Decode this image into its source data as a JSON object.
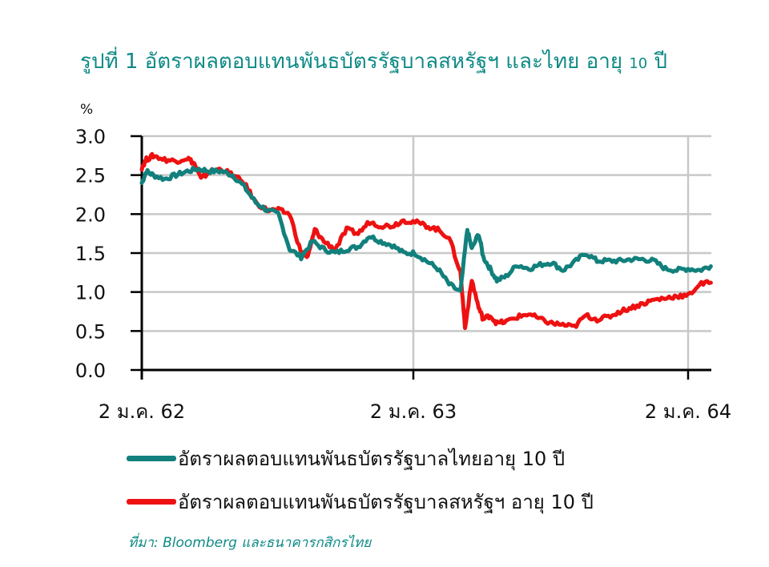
{
  "title": {
    "prefix": "รูปที่ 1 อัตราผลตอบแทนพันธบัตรรัฐบาลสหรัฐฯ และไทย อายุ ",
    "num": "10",
    "suffix": " ปี"
  },
  "colors": {
    "thai": "#12807c",
    "us": "#ee1111",
    "title": "#0e8a86",
    "grid": "#c8c8c8",
    "axis": "#000000"
  },
  "legend": [
    {
      "label": "อัตราผลตอบแทนพันธบัตรรัฐบาลไทยอายุ 10 ปี",
      "color": "#12807c"
    },
    {
      "label": "อัตราผลตอบแทนพันธบัตรรัฐบาลสหรัฐฯ อายุ 10 ปี",
      "color": "#ee1111"
    }
  ],
  "source": "ที่มา: Bloomberg  และธนาคารกสิกรไทย",
  "chart_data": {
    "type": "line",
    "title": "รูปที่ 1 อัตราผลตอบแทนพันธบัตรรัฐบาลสหรัฐฯ และไทย อายุ 10 ปี",
    "xlabel": "",
    "ylabel": "%",
    "ylim": [
      0,
      3.0
    ],
    "yticks": [
      "0.0",
      "0.5",
      "1.0",
      "1.5",
      "2.0",
      "2.5",
      "3.0"
    ],
    "xticks": [
      "2 ม.ค. 62",
      "2 ม.ค. 63",
      "2 ม.ค. 64"
    ],
    "x_unit": "months since 2 ม.ค. 62",
    "xlim": [
      0,
      25.0
    ],
    "grid": true,
    "legend_position": "bottom",
    "series": [
      {
        "name": "อัตราผลตอบแทนพันธบัตรรัฐบาลไทยอายุ 10 ปี",
        "color": "#12807c",
        "x": [
          0,
          0.2,
          0.5,
          1.0,
          1.5,
          2.0,
          2.5,
          3.0,
          3.5,
          4.0,
          4.5,
          5.0,
          5.5,
          6.0,
          6.5,
          7.0,
          7.5,
          8.0,
          8.5,
          9.0,
          9.5,
          10.0,
          10.5,
          11.0,
          11.5,
          12.0,
          12.5,
          13.0,
          13.5,
          14.0,
          14.3,
          14.5,
          14.8,
          15.0,
          15.3,
          15.6,
          16.0,
          16.5,
          17.0,
          17.5,
          18.0,
          18.5,
          19.0,
          19.5,
          20.0,
          20.5,
          21.0,
          21.5,
          22.0,
          22.5,
          23.0,
          23.5,
          24.0,
          24.5,
          25.0
        ],
        "y": [
          2.4,
          2.55,
          2.5,
          2.45,
          2.5,
          2.55,
          2.58,
          2.55,
          2.55,
          2.5,
          2.35,
          2.15,
          2.05,
          2.0,
          1.55,
          1.45,
          1.65,
          1.55,
          1.5,
          1.55,
          1.58,
          1.72,
          1.65,
          1.6,
          1.5,
          1.5,
          1.4,
          1.3,
          1.1,
          1.0,
          1.8,
          1.55,
          1.75,
          1.45,
          1.3,
          1.15,
          1.2,
          1.35,
          1.3,
          1.35,
          1.38,
          1.28,
          1.38,
          1.5,
          1.4,
          1.4,
          1.4,
          1.42,
          1.42,
          1.4,
          1.3,
          1.28,
          1.3,
          1.28,
          1.33
        ]
      },
      {
        "name": "อัตราผลตอบแทนพันธบัตรรัฐบาลสหรัฐฯ อายุ 10 ปี",
        "color": "#ee1111",
        "x": [
          0,
          0.2,
          0.5,
          1.0,
          1.5,
          2.0,
          2.3,
          2.6,
          3.0,
          3.5,
          4.0,
          4.5,
          5.0,
          5.5,
          6.0,
          6.5,
          7.0,
          7.3,
          7.6,
          8.0,
          8.5,
          9.0,
          9.5,
          10.0,
          10.5,
          11.0,
          11.5,
          12.0,
          12.5,
          13.0,
          13.5,
          14.0,
          14.2,
          14.5,
          14.8,
          15.0,
          15.3,
          15.6,
          16.0,
          16.5,
          17.0,
          17.5,
          18.0,
          18.5,
          19.0,
          19.5,
          20.0,
          20.5,
          21.0,
          21.5,
          22.0,
          22.5,
          23.0,
          23.5,
          24.0,
          24.5,
          25.0
        ],
        "y": [
          2.6,
          2.7,
          2.75,
          2.7,
          2.68,
          2.72,
          2.65,
          2.45,
          2.55,
          2.58,
          2.5,
          2.4,
          2.15,
          2.05,
          2.05,
          2.0,
          1.5,
          1.45,
          1.8,
          1.65,
          1.55,
          1.8,
          1.75,
          1.9,
          1.85,
          1.85,
          1.92,
          1.9,
          1.85,
          1.8,
          1.7,
          1.25,
          0.55,
          1.15,
          0.8,
          0.65,
          0.7,
          0.6,
          0.62,
          0.68,
          0.72,
          0.65,
          0.6,
          0.58,
          0.55,
          0.7,
          0.65,
          0.68,
          0.75,
          0.8,
          0.85,
          0.9,
          0.92,
          0.95,
          0.95,
          1.1,
          1.12
        ]
      }
    ]
  }
}
